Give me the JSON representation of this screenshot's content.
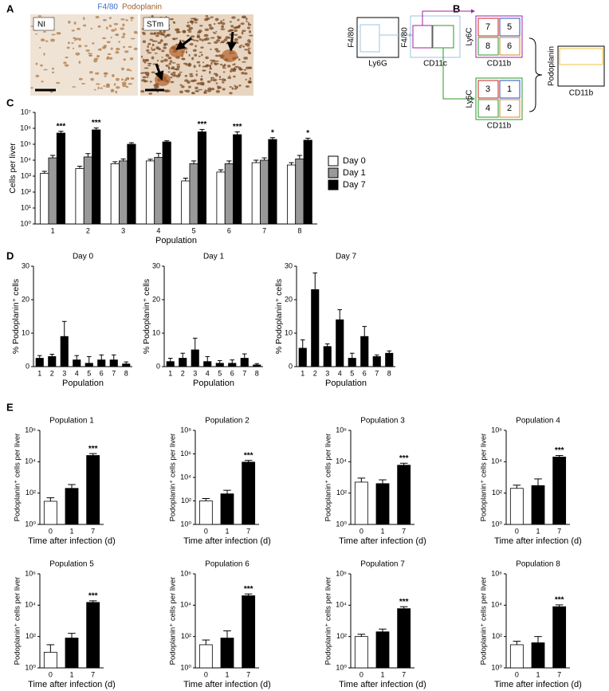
{
  "panel_a": {
    "label": "A",
    "stain_1": "F4/80",
    "stain_2": "Podoplanin",
    "image_labels": [
      "NI",
      "STm"
    ]
  },
  "panel_b": {
    "label": "B",
    "plots": [
      {
        "y_axis": "F4/80",
        "x_axis": "Ly6G"
      },
      {
        "y_axis": "F4/80",
        "x_axis": "CD11c"
      },
      {
        "y_axis": "Ly6C",
        "x_axis": "CD11b",
        "gates": [
          "7",
          "5",
          "8",
          "6"
        ]
      },
      {
        "y_axis": "Ly6C",
        "x_axis": "CD11b",
        "gates": [
          "3",
          "1",
          "4",
          "2"
        ]
      },
      {
        "y_axis": "Podoplanin",
        "x_axis": "CD11b"
      }
    ]
  },
  "chart_data": [
    {
      "type": "bar",
      "panel_label": "C",
      "ylabel": "Cells per liver",
      "xlabel": "Population",
      "log_scale": true,
      "legend": "right",
      "categories": [
        "1",
        "2",
        "3",
        "4",
        "5",
        "6",
        "7",
        "8"
      ],
      "series": [
        {
          "name": "Day 0",
          "color": "#ffffff",
          "values": [
            1500,
            3000,
            6000,
            9000,
            500,
            1800,
            7000,
            5000
          ],
          "errors": [
            500,
            1200,
            2000,
            2500,
            250,
            700,
            3000,
            2000
          ]
        },
        {
          "name": "Day 1",
          "color": "#999999",
          "values": [
            14000,
            16000,
            9000,
            15000,
            6000,
            6000,
            10000,
            12000
          ],
          "errors": [
            6000,
            10000,
            3000,
            12000,
            3000,
            3000,
            4000,
            8000
          ]
        },
        {
          "name": "Day 7",
          "color": "#000000",
          "values": [
            500000,
            800000,
            100000,
            140000,
            600000,
            400000,
            200000,
            180000
          ],
          "errors": [
            150000,
            250000,
            25000,
            25000,
            250000,
            200000,
            60000,
            60000
          ]
        }
      ],
      "annotations": [
        "***",
        "***",
        null,
        null,
        "***",
        "***",
        "*",
        "*"
      ],
      "ylim": [
        1,
        10000000
      ],
      "yticks": [
        {
          "value": 1,
          "label": "10⁰"
        },
        {
          "value": 10,
          "label": "10¹"
        },
        {
          "value": 100,
          "label": "10²"
        },
        {
          "value": 1000,
          "label": "10³"
        },
        {
          "value": 10000,
          "label": "10⁴"
        },
        {
          "value": 100000,
          "label": "10⁵"
        },
        {
          "value": 1000000,
          "label": "10⁶"
        },
        {
          "value": 10000000,
          "label": "10⁷"
        }
      ]
    },
    {
      "type": "bar",
      "panel_label": "D",
      "title": "Day 0",
      "ylabel": "% Podoplanin⁺ cells",
      "xlabel": "Population",
      "color": "#000000",
      "categories": [
        "1",
        "2",
        "3",
        "4",
        "5",
        "6",
        "7",
        "8"
      ],
      "values": [
        2.5,
        3,
        9,
        2,
        1,
        2,
        2,
        0.8
      ],
      "errors": [
        0.8,
        0.7,
        4.5,
        1.3,
        2,
        1.5,
        1.5,
        0.6
      ],
      "ylim": [
        0,
        30
      ],
      "yticks": [
        0,
        10,
        20,
        30
      ]
    },
    {
      "type": "bar",
      "title": "Day 1",
      "ylabel": "% Podoplanin⁺ cells",
      "xlabel": "Population",
      "color": "#000000",
      "categories": [
        "1",
        "2",
        "3",
        "4",
        "5",
        "6",
        "7",
        "8"
      ],
      "values": [
        1.5,
        2.5,
        5,
        1.5,
        1,
        1,
        2.5,
        0.5
      ],
      "errors": [
        1,
        1.5,
        3.5,
        1.5,
        0.8,
        1,
        1.3,
        0.4
      ],
      "ylim": [
        0,
        30
      ],
      "yticks": [
        0,
        10,
        20,
        30
      ]
    },
    {
      "type": "bar",
      "title": "Day 7",
      "ylabel": "% Podoplanin⁺ cells",
      "xlabel": "Population",
      "color": "#000000",
      "categories": [
        "1",
        "2",
        "3",
        "4",
        "5",
        "6",
        "7",
        "8"
      ],
      "values": [
        5.5,
        23,
        6,
        14,
        2.5,
        9,
        3,
        4
      ],
      "errors": [
        2.5,
        5,
        0.8,
        3,
        1.5,
        3,
        0.5,
        0.7
      ],
      "ylim": [
        0,
        30
      ],
      "yticks": [
        0,
        10,
        20,
        30
      ]
    },
    {
      "type": "bar",
      "panel_label": "E",
      "title": "Population 1",
      "ylabel": "Podoplanin⁺ cells per liver",
      "xlabel": "Time after infection (d)",
      "log_scale": true,
      "categories": [
        "0",
        "1",
        "7"
      ],
      "colors": [
        "#ffffff",
        "#000000",
        "#000000"
      ],
      "values": [
        30,
        200,
        25000
      ],
      "errors": [
        20,
        150,
        8000
      ],
      "annotations": [
        null,
        null,
        "***"
      ],
      "ylim": [
        1,
        1000000
      ],
      "yticks": [
        {
          "value": 1,
          "label": "10⁰"
        },
        {
          "value": 100,
          "label": "10²"
        },
        {
          "value": 10000,
          "label": "10⁴"
        },
        {
          "value": 1000000,
          "label": "10⁶"
        }
      ]
    },
    {
      "type": "bar",
      "title": "Population 2",
      "ylabel": "Podoplanin⁺ cells per liver",
      "xlabel": "Time after infection (d)",
      "log_scale": true,
      "categories": [
        "0",
        "1",
        "7"
      ],
      "colors": [
        "#ffffff",
        "#000000",
        "#000000"
      ],
      "values": [
        100,
        400,
        200000
      ],
      "errors": [
        60,
        400,
        80000
      ],
      "annotations": [
        null,
        null,
        "***"
      ],
      "ylim": [
        1,
        100000000
      ],
      "yticks": [
        {
          "value": 1,
          "label": "10⁰"
        },
        {
          "value": 100,
          "label": "10²"
        },
        {
          "value": 10000,
          "label": "10⁴"
        },
        {
          "value": 1000000,
          "label": "10⁶"
        },
        {
          "value": 100000000,
          "label": "10⁸"
        }
      ]
    },
    {
      "type": "bar",
      "title": "Population 3",
      "ylabel": "Podoplanin⁺ cells per liver",
      "xlabel": "Time after infection (d)",
      "log_scale": true,
      "categories": [
        "0",
        "1",
        "7"
      ],
      "colors": [
        "#ffffff",
        "#000000",
        "#000000"
      ],
      "values": [
        500,
        400,
        6000
      ],
      "errors": [
        400,
        300,
        2000
      ],
      "annotations": [
        null,
        null,
        "***"
      ],
      "ylim": [
        1,
        1000000
      ],
      "yticks": [
        {
          "value": 1,
          "label": "10⁰"
        },
        {
          "value": 100,
          "label": "10²"
        },
        {
          "value": 10000,
          "label": "10⁴"
        },
        {
          "value": 1000000,
          "label": "10⁶"
        }
      ]
    },
    {
      "type": "bar",
      "title": "Population 4",
      "ylabel": "Podoplanin⁺ cells per liver",
      "xlabel": "Time after infection (d)",
      "log_scale": true,
      "categories": [
        "0",
        "1",
        "7"
      ],
      "colors": [
        "#ffffff",
        "#000000",
        "#000000"
      ],
      "values": [
        200,
        300,
        20000
      ],
      "errors": [
        120,
        500,
        5000
      ],
      "annotations": [
        null,
        null,
        "***"
      ],
      "ylim": [
        1,
        1000000
      ],
      "yticks": [
        {
          "value": 1,
          "label": "10⁰"
        },
        {
          "value": 100,
          "label": "10²"
        },
        {
          "value": 10000,
          "label": "10⁴"
        },
        {
          "value": 1000000,
          "label": "10⁶"
        }
      ]
    },
    {
      "type": "bar",
      "title": "Population 5",
      "ylabel": "Podoplanin⁺ cells per liver",
      "xlabel": "Time after infection (d)",
      "log_scale": true,
      "categories": [
        "0",
        "1",
        "7"
      ],
      "colors": [
        "#ffffff",
        "#000000",
        "#000000"
      ],
      "values": [
        10,
        80,
        15000
      ],
      "errors": [
        20,
        80,
        4000
      ],
      "annotations": [
        null,
        null,
        "***"
      ],
      "ylim": [
        1,
        1000000
      ],
      "yticks": [
        {
          "value": 1,
          "label": "10⁰"
        },
        {
          "value": 100,
          "label": "10²"
        },
        {
          "value": 10000,
          "label": "10⁴"
        },
        {
          "value": 1000000,
          "label": "10⁶"
        }
      ]
    },
    {
      "type": "bar",
      "title": "Population 6",
      "ylabel": "Podoplanin⁺ cells per liver",
      "xlabel": "Time after infection (d)",
      "log_scale": true,
      "categories": [
        "0",
        "1",
        "7"
      ],
      "colors": [
        "#ffffff",
        "#000000",
        "#000000"
      ],
      "values": [
        30,
        80,
        40000
      ],
      "errors": [
        30,
        150,
        12000
      ],
      "annotations": [
        null,
        null,
        "***"
      ],
      "ylim": [
        1,
        1000000
      ],
      "yticks": [
        {
          "value": 1,
          "label": "10⁰"
        },
        {
          "value": 100,
          "label": "10²"
        },
        {
          "value": 10000,
          "label": "10⁴"
        },
        {
          "value": 1000000,
          "label": "10⁶"
        }
      ]
    },
    {
      "type": "bar",
      "title": "Population 7",
      "ylabel": "Podoplanin⁺ cells per liver",
      "xlabel": "Time after infection (d)",
      "log_scale": true,
      "categories": [
        "0",
        "1",
        "7"
      ],
      "colors": [
        "#ffffff",
        "#000000",
        "#000000"
      ],
      "values": [
        100,
        200,
        6000
      ],
      "errors": [
        40,
        100,
        2000
      ],
      "annotations": [
        null,
        null,
        "***"
      ],
      "ylim": [
        1,
        1000000
      ],
      "yticks": [
        {
          "value": 1,
          "label": "10⁰"
        },
        {
          "value": 100,
          "label": "10²"
        },
        {
          "value": 10000,
          "label": "10⁴"
        },
        {
          "value": 1000000,
          "label": "10⁶"
        }
      ]
    },
    {
      "type": "bar",
      "title": "Population 8",
      "ylabel": "Podoplanin⁺ cells per liver",
      "xlabel": "Time after infection (d)",
      "log_scale": true,
      "categories": [
        "0",
        "1",
        "7"
      ],
      "colors": [
        "#ffffff",
        "#000000",
        "#000000"
      ],
      "values": [
        30,
        40,
        8000
      ],
      "errors": [
        20,
        60,
        2500
      ],
      "annotations": [
        null,
        null,
        "***"
      ],
      "ylim": [
        1,
        1000000
      ],
      "yticks": [
        {
          "value": 1,
          "label": "10⁰"
        },
        {
          "value": 100,
          "label": "10²"
        },
        {
          "value": 10000,
          "label": "10⁴"
        },
        {
          "value": 1000000,
          "label": "10⁶"
        }
      ]
    }
  ]
}
